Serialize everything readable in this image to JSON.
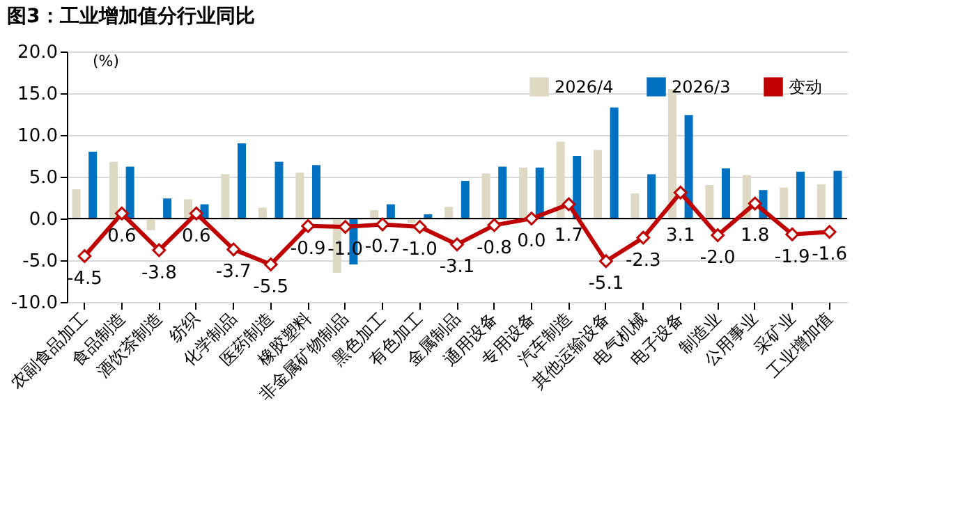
{
  "chart_data": {
    "type": "bar",
    "title": "图3：工业增加值分行业同比",
    "ylabel": "(%)",
    "categories": [
      "农副食品加工",
      "食品制造",
      "酒饮茶制造",
      "纺织",
      "化学制品",
      "医药制造",
      "橡胶塑料",
      "非金属矿物制品",
      "黑色加工",
      "有色加工",
      "金属制品",
      "通用设备",
      "专用设备",
      "汽车制造",
      "其他运输设备",
      "电气机械",
      "电子设备",
      "制造业",
      "公用事业",
      "采矿业",
      "工业增加值"
    ],
    "series": [
      {
        "name": "2026/4",
        "type": "bar",
        "color": "#ddd9c3",
        "values": [
          3.5,
          6.8,
          -1.4,
          2.3,
          5.3,
          1.3,
          5.5,
          -6.5,
          1.0,
          -0.5,
          1.4,
          5.4,
          6.1,
          9.2,
          8.2,
          3.0,
          15.5,
          4.0,
          5.2,
          3.7,
          4.1
        ]
      },
      {
        "name": "2026/3",
        "type": "bar",
        "color": "#0070c0",
        "values": [
          8.0,
          6.2,
          2.4,
          1.7,
          9.0,
          6.8,
          6.4,
          -5.5,
          1.7,
          0.5,
          4.5,
          6.2,
          6.1,
          7.5,
          13.3,
          5.3,
          12.4,
          6.0,
          3.4,
          5.6,
          5.7
        ]
      },
      {
        "name": "变动",
        "type": "line",
        "color": "#c00000",
        "values": [
          -4.5,
          0.6,
          -3.8,
          0.6,
          -3.7,
          -5.5,
          -0.9,
          -1.0,
          -0.7,
          -1.0,
          -3.1,
          -0.8,
          0.0,
          1.7,
          -5.1,
          -2.3,
          3.1,
          -2.0,
          1.8,
          -1.9,
          -1.6
        ],
        "value_labels": [
          "-4.5",
          "0.6",
          "-3.8",
          "0.6",
          "-3.7",
          "-5.5",
          "-0.9",
          "-1.0",
          "-0.7",
          "-1.0",
          "-3.1",
          "-0.8",
          "0.0",
          "1.7",
          "-5.1",
          "-2.3",
          "3.1",
          "-2.0",
          "1.8",
          "-1.9",
          "-1.6"
        ]
      }
    ],
    "ylim": [
      -10,
      20
    ],
    "yticks": [
      {
        "value": -10,
        "label": "-10.0"
      },
      {
        "value": -5,
        "label": "-5.0"
      },
      {
        "value": 0,
        "label": "0.0"
      },
      {
        "value": 5,
        "label": "5.0"
      },
      {
        "value": 10,
        "label": "10.0"
      },
      {
        "value": 15,
        "label": "15.0"
      },
      {
        "value": 20,
        "label": "20.0"
      }
    ],
    "grid": "y",
    "legend": "top right",
    "marker": "diamond",
    "line_style": "solid"
  }
}
